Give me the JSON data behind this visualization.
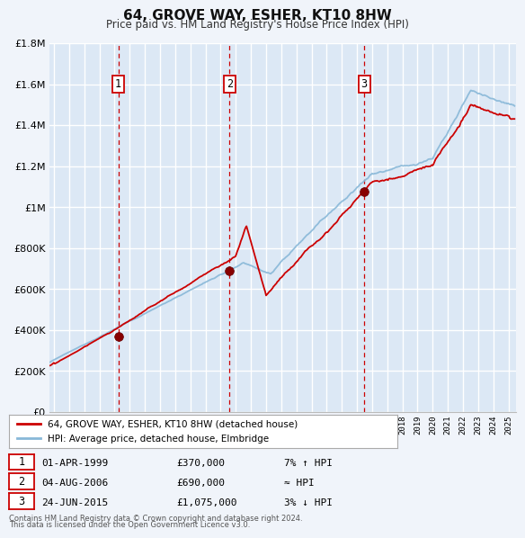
{
  "title": "64, GROVE WAY, ESHER, KT10 8HW",
  "subtitle": "Price paid vs. HM Land Registry's House Price Index (HPI)",
  "bg_color": "#f0f4fa",
  "plot_bg_color": "#dce8f5",
  "grid_color": "#ffffff",
  "red_line_color": "#cc0000",
  "blue_line_color": "#88b8d8",
  "sale_marker_color": "#880000",
  "vline_color": "#cc0000",
  "ylim": [
    0,
    1800000
  ],
  "yticks": [
    0,
    200000,
    400000,
    600000,
    800000,
    1000000,
    1200000,
    1400000,
    1600000,
    1800000
  ],
  "ytick_labels": [
    "£0",
    "£200K",
    "£400K",
    "£600K",
    "£800K",
    "£1M",
    "£1.2M",
    "£1.4M",
    "£1.6M",
    "£1.8M"
  ],
  "xmin": 1994.7,
  "xmax": 2025.5,
  "sale1_x": 1999.25,
  "sale1_y": 370000,
  "sale2_x": 2006.59,
  "sale2_y": 690000,
  "sale3_x": 2015.48,
  "sale3_y": 1075000,
  "legend_label_red": "64, GROVE WAY, ESHER, KT10 8HW (detached house)",
  "legend_label_blue": "HPI: Average price, detached house, Elmbridge",
  "table_rows": [
    {
      "num": "1",
      "date": "01-APR-1999",
      "price": "£370,000",
      "hpi": "7% ↑ HPI"
    },
    {
      "num": "2",
      "date": "04-AUG-2006",
      "price": "£690,000",
      "hpi": "≈ HPI"
    },
    {
      "num": "3",
      "date": "24-JUN-2015",
      "price": "£1,075,000",
      "hpi": "3% ↓ HPI"
    }
  ],
  "footnote1": "Contains HM Land Registry data © Crown copyright and database right 2024.",
  "footnote2": "This data is licensed under the Open Government Licence v3.0."
}
